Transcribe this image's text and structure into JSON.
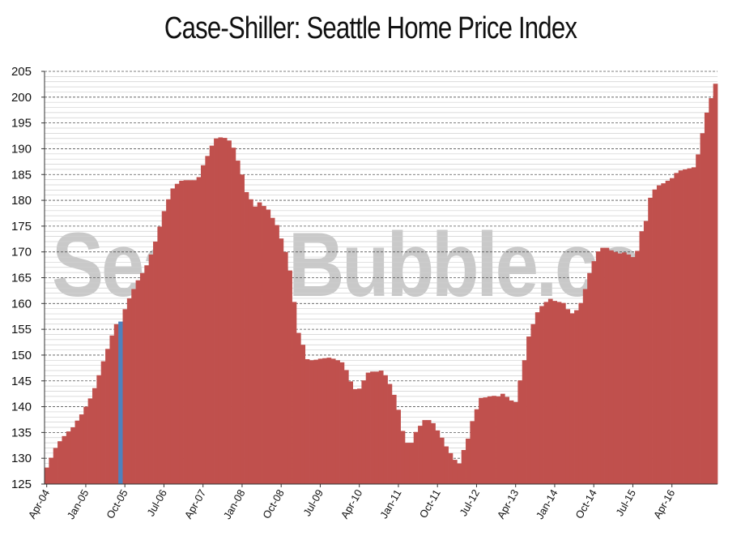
{
  "chart_data": {
    "type": "bar",
    "title": "Case-Shiller: Seattle Home Price Index",
    "watermark": "SeattleBubble.com",
    "xlabel": "",
    "ylabel": "",
    "ylim": [
      125,
      205
    ],
    "y_ticks": [
      125,
      130,
      135,
      140,
      145,
      150,
      155,
      160,
      165,
      170,
      175,
      180,
      185,
      190,
      195,
      200,
      205
    ],
    "x_tick_labels": [
      "Apr-04",
      "Jan-05",
      "Oct-05",
      "Jul-06",
      "Apr-07",
      "Jan-08",
      "Oct-08",
      "Jul-09",
      "Apr-10",
      "Jan-11",
      "Oct-11",
      "Jul-12",
      "Apr-13",
      "Jan-14",
      "Oct-14",
      "Jul-15",
      "Apr-16"
    ],
    "x_tick_every": 9,
    "grid": true,
    "legend": "none",
    "bar_color": "#c0504d",
    "highlight_color": "#4f81bd",
    "highlight_index": 17,
    "values": [
      128.2,
      130.1,
      132.0,
      133.3,
      134.3,
      135.2,
      136.0,
      137.3,
      138.5,
      140.0,
      141.6,
      143.6,
      146.1,
      148.8,
      151.2,
      153.8,
      156.0,
      156.5,
      158.9,
      161.0,
      162.8,
      164.5,
      165.9,
      167.4,
      169.5,
      172.0,
      174.9,
      177.9,
      180.2,
      182.3,
      183.2,
      183.8,
      183.9,
      183.9,
      183.9,
      184.5,
      186.8,
      188.6,
      190.6,
      192.0,
      192.2,
      192.1,
      191.6,
      190.2,
      187.7,
      185.0,
      181.6,
      180.2,
      178.8,
      179.6,
      178.9,
      178.2,
      176.6,
      175.2,
      172.6,
      170.0,
      166.4,
      160.3,
      154.3,
      152.0,
      149.2,
      149.0,
      149.1,
      149.3,
      149.4,
      149.5,
      149.3,
      149.0,
      148.6,
      147.1,
      144.9,
      143.4,
      143.5,
      145.1,
      146.6,
      146.8,
      146.8,
      147.0,
      146.1,
      144.4,
      142.3,
      139.4,
      135.3,
      133.0,
      133.0,
      135.1,
      136.3,
      137.4,
      137.4,
      136.8,
      135.4,
      134.0,
      132.3,
      131.0,
      129.7,
      129.0,
      131.6,
      133.8,
      137.2,
      139.5,
      141.7,
      141.8,
      142.0,
      142.1,
      142.0,
      142.5,
      141.9,
      141.2,
      140.9,
      145.1,
      149.0,
      153.6,
      156.0,
      158.3,
      159.5,
      160.3,
      160.9,
      160.5,
      160.3,
      160.1,
      158.9,
      158.1,
      158.7,
      160.1,
      162.8,
      165.9,
      168.2,
      170.1,
      170.8,
      170.8,
      170.3,
      170.0,
      169.7,
      169.9,
      169.5,
      169.0,
      170.2,
      174.0,
      176.0,
      180.5,
      182.1,
      182.9,
      183.3,
      183.8,
      184.3,
      185.3,
      185.8,
      186.0,
      186.2,
      186.4,
      188.9,
      193.0,
      197.0,
      199.8,
      202.6
    ]
  }
}
